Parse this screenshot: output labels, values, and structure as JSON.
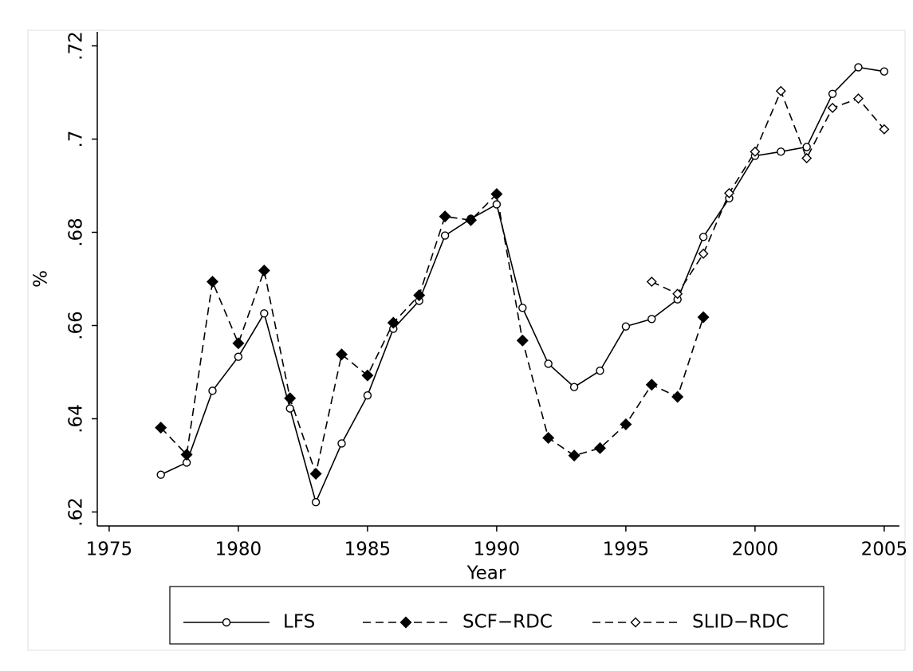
{
  "chart_data": {
    "type": "line",
    "x_label": "Year",
    "y_label": "%",
    "x": [
      1977,
      1978,
      1979,
      1980,
      1981,
      1982,
      1983,
      1984,
      1985,
      1986,
      1987,
      1988,
      1989,
      1990,
      1991,
      1992,
      1993,
      1994,
      1995,
      1996,
      1997,
      1998,
      1999,
      2000,
      2001,
      2002,
      2003,
      2004,
      2005
    ],
    "series": [
      {
        "name": "LFS",
        "color": "#000000",
        "line_style": "solid",
        "marker": "hollow-circle",
        "values": [
          0.628,
          0.6306,
          0.646,
          0.6533,
          0.6626,
          0.6422,
          0.6221,
          0.6347,
          0.645,
          0.6593,
          0.6653,
          0.6793,
          0.6829,
          0.686,
          0.6638,
          0.6518,
          0.6468,
          0.6503,
          0.6598,
          0.6614,
          0.6656,
          0.679,
          0.6873,
          0.6964,
          0.6973,
          0.6983,
          0.7097,
          0.7154,
          0.7145
        ]
      },
      {
        "name": "SCF−RDC",
        "color": "#000000",
        "line_style": "dashed",
        "marker": "filled-diamond",
        "values": [
          0.6381,
          0.6323,
          0.6694,
          0.6562,
          0.6718,
          0.6444,
          0.6282,
          0.6538,
          0.6493,
          0.6606,
          0.6665,
          0.6834,
          0.6826,
          0.6882,
          0.6568,
          0.6359,
          0.6321,
          0.6337,
          0.6388,
          0.6473,
          0.6447,
          0.6618,
          null,
          null,
          null,
          null,
          null,
          null,
          null
        ]
      },
      {
        "name": "SLID−RDC",
        "color": "#000000",
        "line_style": "dashed",
        "marker": "hollow-diamond",
        "values": [
          null,
          null,
          null,
          null,
          null,
          null,
          null,
          null,
          null,
          null,
          null,
          null,
          null,
          null,
          null,
          null,
          null,
          null,
          null,
          0.6694,
          0.6668,
          0.6754,
          0.6884,
          0.6973,
          0.7103,
          0.6959,
          0.7067,
          0.7087,
          0.7021
        ]
      }
    ],
    "xlim": [
      1974.54,
      2005.59
    ],
    "xticks": [
      1975,
      1980,
      1985,
      1990,
      1995,
      2000,
      2005
    ],
    "ylim": [
      0.617,
      0.723
    ],
    "yticks": [
      {
        "value": 0.62,
        "label": ".62"
      },
      {
        "value": 0.64,
        "label": ".64"
      },
      {
        "value": 0.66,
        "label": ".66"
      },
      {
        "value": 0.68,
        "label": ".68"
      },
      {
        "value": 0.7,
        "label": ".7"
      },
      {
        "value": 0.72,
        "label": ".72"
      }
    ],
    "grid": false,
    "legend_position": "bottom"
  }
}
